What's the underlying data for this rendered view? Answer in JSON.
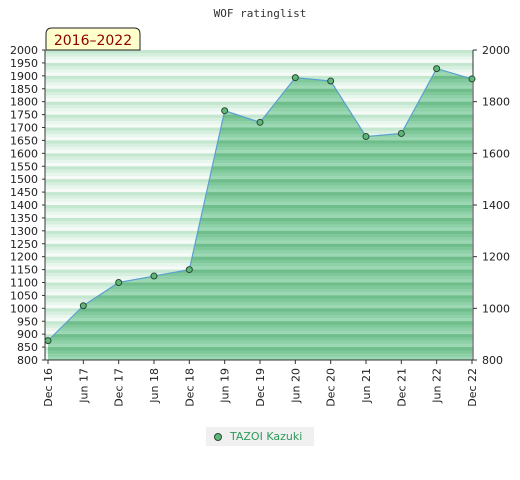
{
  "chart_data": {
    "type": "area",
    "title": "WOF ratinglist",
    "range_label": "2016–2022",
    "x": [
      "Dec 16",
      "Jun 17",
      "Dec 17",
      "Jun 18",
      "Dec 18",
      "Jun 19",
      "Dec 19",
      "Jun 20",
      "Dec 20",
      "Jun 21",
      "Dec 21",
      "Jun 22",
      "Dec 22"
    ],
    "series": [
      {
        "name": "TAZOI Kazuki",
        "values": [
          875,
          1010,
          1100,
          1125,
          1150,
          1765,
          1720,
          1893,
          1880,
          1665,
          1677,
          1928,
          1888
        ]
      }
    ],
    "ylim": [
      800,
      2000
    ],
    "y_left_ticks": [
      800,
      850,
      900,
      950,
      1000,
      1050,
      1100,
      1150,
      1200,
      1250,
      1300,
      1350,
      1400,
      1450,
      1500,
      1550,
      1600,
      1650,
      1700,
      1750,
      1800,
      1850,
      1900,
      1950,
      2000
    ],
    "y_right_ticks": [
      800,
      1000,
      1200,
      1400,
      1600,
      1800,
      2000
    ],
    "legend_position": "bottom-center",
    "colors": {
      "area": "#7ec89a",
      "line": "#5aa0d0",
      "marker": "#5fb878"
    }
  }
}
